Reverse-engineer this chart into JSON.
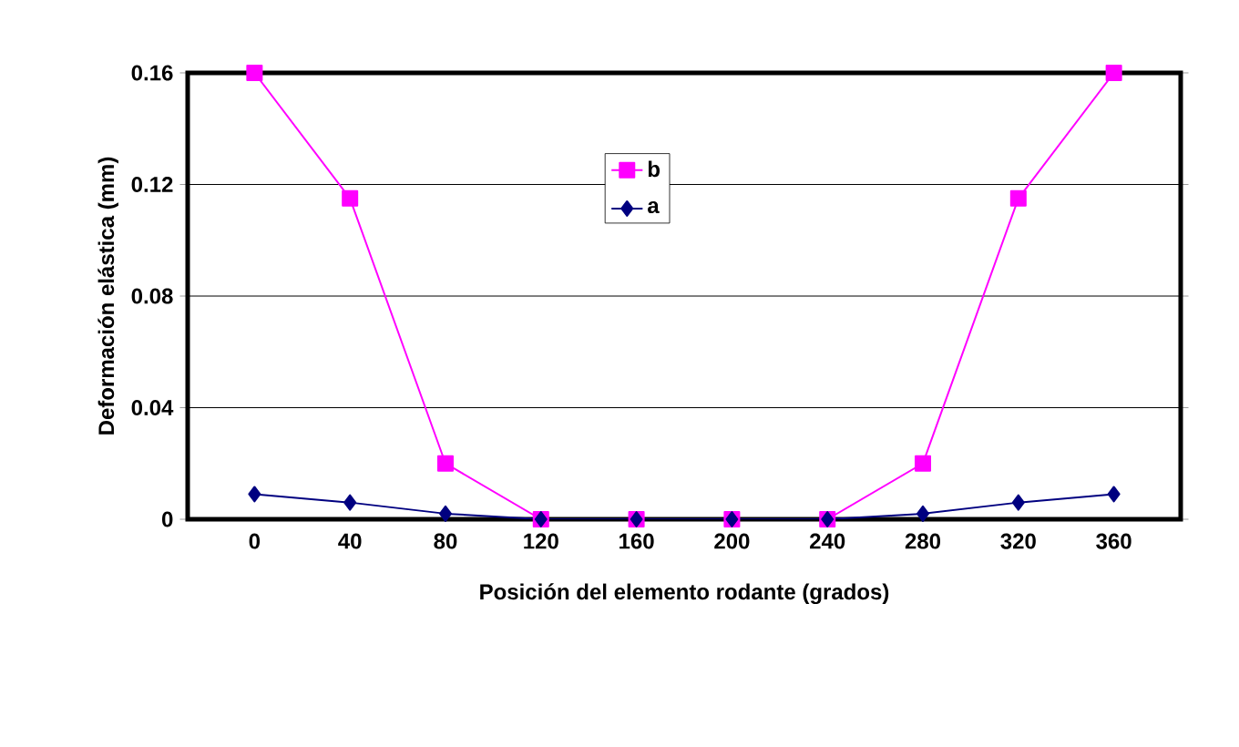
{
  "chart_data": {
    "type": "line",
    "xlabel": "Posición del elemento rodante (grados)",
    "ylabel": "Deformación elástica (mm)",
    "categories": [
      "0",
      "40",
      "80",
      "120",
      "160",
      "200",
      "240",
      "280",
      "320",
      "360"
    ],
    "series": [
      {
        "name": "b",
        "color": "#ff00ff",
        "marker": "square",
        "values": [
          0.16,
          0.115,
          0.02,
          0,
          0,
          0,
          0,
          0.02,
          0.115,
          0.16
        ]
      },
      {
        "name": "a",
        "color": "#000080",
        "marker": "diamond",
        "values": [
          0.009,
          0.006,
          0.002,
          0,
          0,
          0,
          0,
          0.002,
          0.006,
          0.009
        ]
      }
    ],
    "ylim": [
      0,
      0.16
    ],
    "yticks": [
      0,
      0.04,
      0.08,
      0.12,
      0.16
    ],
    "grid": "y",
    "legend": "top",
    "line_style": "solid"
  }
}
